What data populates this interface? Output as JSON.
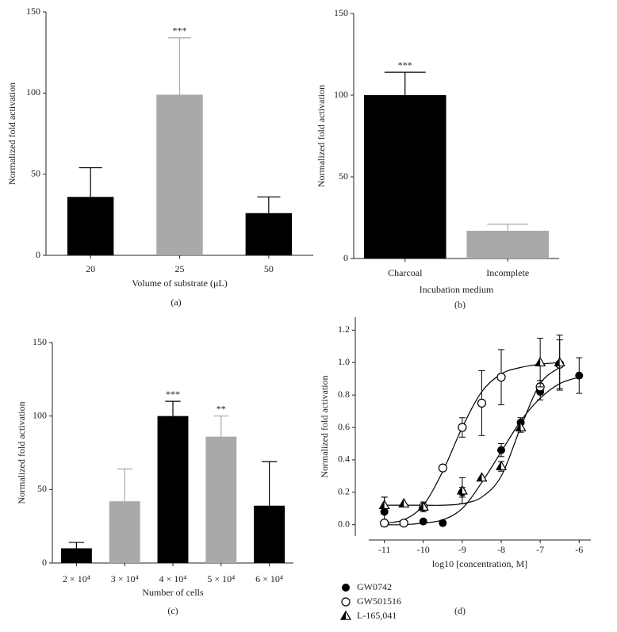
{
  "chart_data": [
    {
      "type": "bar",
      "categories": [
        "20",
        "25",
        "50"
      ],
      "values": [
        36,
        99,
        26
      ],
      "errors": [
        18,
        35,
        10
      ],
      "colors": [
        "#000000",
        "#a9a9a9",
        "#000000"
      ],
      "significance": [
        null,
        "***",
        null
      ],
      "ylim": [
        0,
        150
      ],
      "yticks": [
        0,
        50,
        100,
        150
      ],
      "xlabel": "Volume of substrate (μL)",
      "ylabel": "Normalized fold activation",
      "caption": "(a)"
    },
    {
      "type": "bar",
      "categories": [
        "Charcoal",
        "Incomplete"
      ],
      "values": [
        100,
        17
      ],
      "errors": [
        14,
        4
      ],
      "colors": [
        "#000000",
        "#a9a9a9"
      ],
      "significance": [
        "***",
        null
      ],
      "ylim": [
        0,
        150
      ],
      "yticks": [
        0,
        50,
        100,
        150
      ],
      "xlabel": "Incubation medium",
      "ylabel": "Normalized fold activation",
      "caption": "(b)"
    },
    {
      "type": "bar",
      "categories": [
        "2 × 10⁴",
        "3 × 10⁴",
        "4 × 10⁴",
        "5 × 10⁴",
        "6 × 10⁴"
      ],
      "values": [
        10,
        42,
        100,
        86,
        39
      ],
      "errors": [
        4,
        22,
        10,
        14,
        30
      ],
      "colors": [
        "#000000",
        "#a9a9a9",
        "#000000",
        "#a9a9a9",
        "#000000"
      ],
      "significance": [
        null,
        null,
        "***",
        "**",
        null
      ],
      "ylim": [
        0,
        150
      ],
      "yticks": [
        0,
        50,
        100,
        150
      ],
      "xlabel": "Number of cells",
      "ylabel": "Normalized fold activation",
      "caption": "(c)"
    },
    {
      "type": "scatter",
      "series": [
        {
          "name": "GW0742",
          "marker": "filled-circle",
          "color": "#000000",
          "x": [
            -11,
            -10,
            -9.5,
            -9,
            -8,
            -7.5,
            -7,
            -6
          ],
          "values": [
            0.08,
            0.02,
            0.01,
            0.2,
            0.46,
            0.63,
            0.82,
            0.92
          ],
          "errors": [
            0.09,
            null,
            null,
            0.03,
            0.04,
            0.03,
            0.05,
            0.11
          ]
        },
        {
          "name": "GW501516",
          "marker": "open-circle",
          "color": "#000000",
          "x": [
            -11,
            -10.5,
            -10,
            -9.5,
            -9,
            -8.5,
            -8,
            -7,
            -6.5
          ],
          "values": [
            0.01,
            0.01,
            0.11,
            0.35,
            0.6,
            0.75,
            0.91,
            0.85,
            0.99
          ],
          "errors": [
            null,
            null,
            0.03,
            null,
            0.06,
            0.2,
            0.17,
            0.04,
            0.15
          ]
        },
        {
          "name": "L-165,041",
          "marker": "half-triangle",
          "color": "#000000",
          "x": [
            -11,
            -10.5,
            -10,
            -9,
            -8.5,
            -8,
            -7.5,
            -7,
            -6.5
          ],
          "values": [
            0.12,
            0.13,
            0.11,
            0.21,
            0.29,
            0.36,
            0.6,
            1.0,
            1.0
          ],
          "errors": [
            0.05,
            null,
            null,
            0.08,
            null,
            0.03,
            0.03,
            0.15,
            0.17
          ]
        }
      ],
      "fits": [
        {
          "x": [
            -11,
            -10.5,
            -10,
            -9.5,
            -9,
            -8.5,
            -8,
            -7.5,
            -7,
            -6.5,
            -6
          ],
          "y": [
            0,
            0,
            0.01,
            0.03,
            0.1,
            0.26,
            0.45,
            0.64,
            0.78,
            0.87,
            0.91
          ]
        },
        {
          "x": [
            -11,
            -10.5,
            -10,
            -9.5,
            -9,
            -8.5,
            -8,
            -7.5,
            -7,
            -6.5
          ],
          "y": [
            0.01,
            0.03,
            0.12,
            0.33,
            0.6,
            0.82,
            0.93,
            0.97,
            0.99,
            1.0
          ]
        },
        {
          "x": [
            -11,
            -10.5,
            -10,
            -9.5,
            -9,
            -8.5,
            -8,
            -7.5,
            -7,
            -6.5
          ],
          "y": [
            0.12,
            0.12,
            0.12,
            0.12,
            0.13,
            0.17,
            0.3,
            0.6,
            0.87,
            0.97
          ]
        }
      ],
      "xlim": [
        -11.4,
        -5.7
      ],
      "xticks": [
        -11,
        -10,
        -9,
        -8,
        -7,
        -6
      ],
      "ylim": [
        -0.07,
        1.28
      ],
      "yticks": [
        {
          "value": 0,
          "label": "0.0"
        },
        0.2,
        0.4,
        0.6,
        0.8,
        {
          "value": 1,
          "label": "1.0"
        },
        1.2
      ],
      "xlabel": "log10 [concentration, M]",
      "ylabel": "Normalized fold activation",
      "caption": "(d)"
    }
  ]
}
